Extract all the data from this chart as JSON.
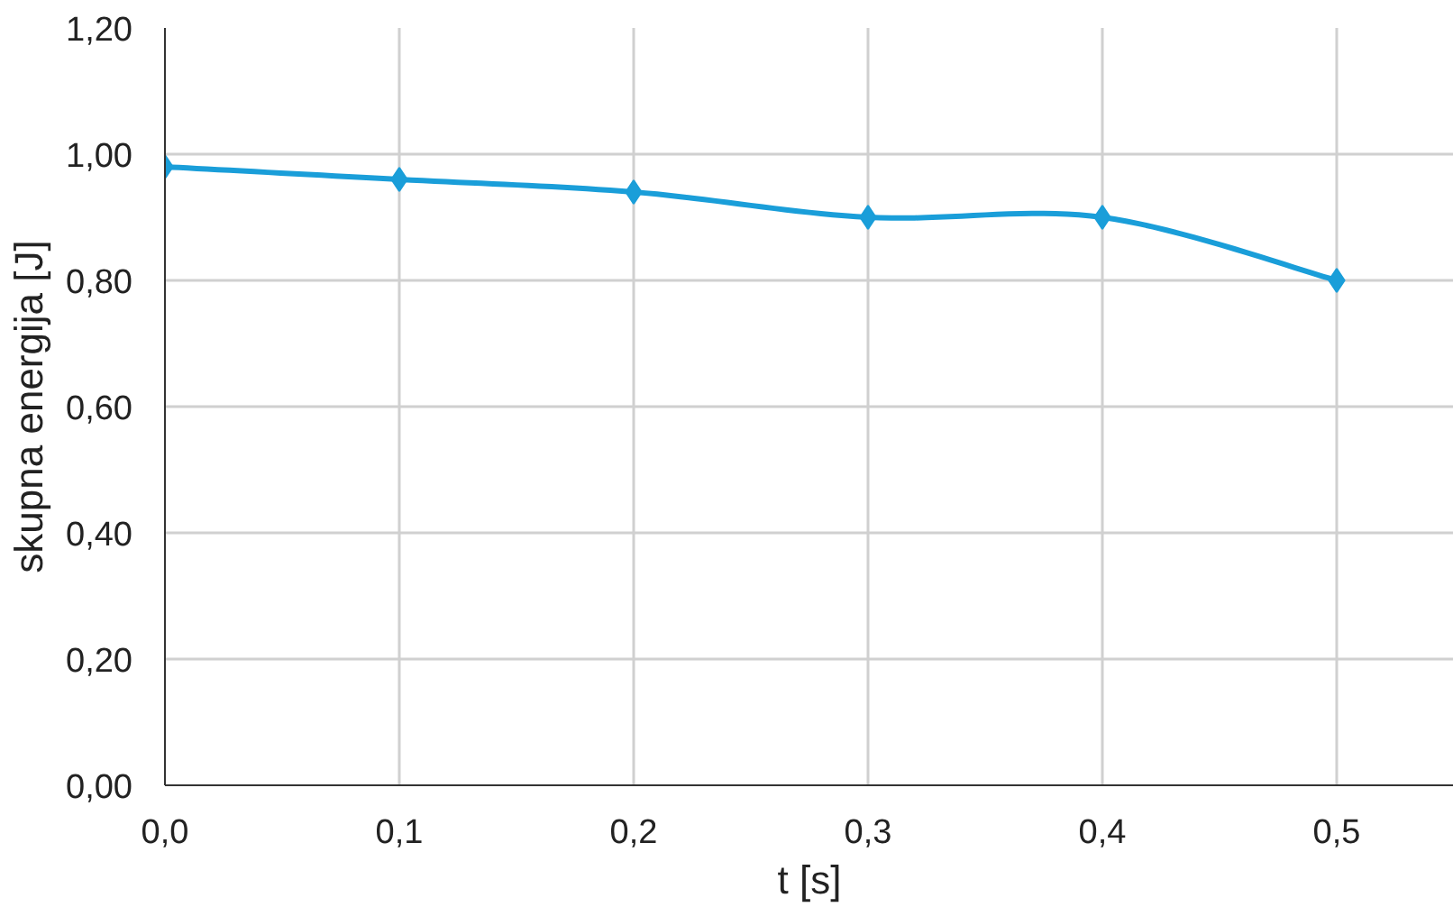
{
  "chart_data": {
    "type": "line",
    "xlabel": "t [s]",
    "ylabel": "skupna energija [J]",
    "x": [
      0,
      0.1,
      0.2,
      0.3,
      0.4,
      0.5
    ],
    "series": [
      {
        "color": "#1a9ed9",
        "values": [
          0.98,
          0.96,
          0.94,
          0.9,
          0.9,
          0.8
        ]
      }
    ],
    "xlim": [
      0,
      0.55
    ],
    "ylim": [
      0,
      1.2
    ],
    "xticks": [
      {
        "value": 0,
        "label": "0,0"
      },
      {
        "value": 0.1,
        "label": "0,1"
      },
      {
        "value": 0.2,
        "label": "0,2"
      },
      {
        "value": 0.3,
        "label": "0,3"
      },
      {
        "value": 0.4,
        "label": "0,4"
      },
      {
        "value": 0.5,
        "label": "0,5"
      }
    ],
    "yticks": [
      {
        "value": 0,
        "label": "0,00"
      },
      {
        "value": 0.2,
        "label": "0,20"
      },
      {
        "value": 0.4,
        "label": "0,40"
      },
      {
        "value": 0.6,
        "label": "0,60"
      },
      {
        "value": 0.8,
        "label": "0,80"
      },
      {
        "value": 1.0,
        "label": "1,00"
      },
      {
        "value": 1.2,
        "label": "1,20"
      }
    ],
    "grid": true,
    "marker": "diamond",
    "line_style": "solid"
  }
}
